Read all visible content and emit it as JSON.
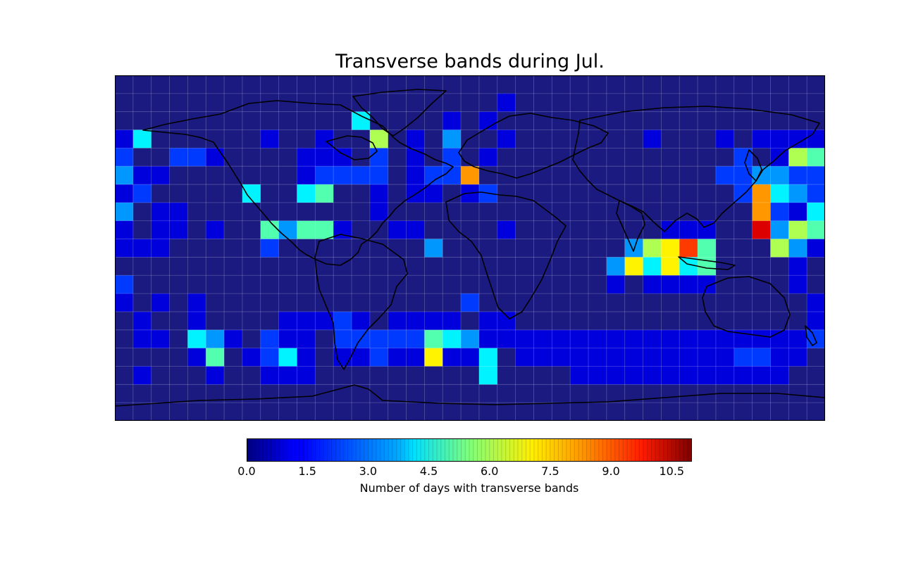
{
  "title": "Transverse bands during Jul.",
  "colorbar": {
    "label": "Number of days with transverse bands",
    "min": 0,
    "max": 11,
    "ticks": [
      "0.0",
      "1.5",
      "3.0",
      "4.5",
      "6.0",
      "7.5",
      "9.0",
      "10.5"
    ],
    "tick_values": [
      0,
      1.5,
      3,
      4.5,
      6,
      7.5,
      9,
      10.5
    ],
    "colormap": "jet"
  },
  "chart_data": {
    "type": "heatmap",
    "title": "Transverse bands during Jul.",
    "colorbar_label": "Number of days with transverse bands",
    "vmin": 0,
    "vmax": 11,
    "grid": "10x10 degree",
    "lon_range": [
      -180,
      180
    ],
    "lat_range": [
      -90,
      90
    ],
    "note_rows": "rows ordered from 90N down to 90S; columns from 180W eastward",
    "values": [
      [
        0,
        0,
        0,
        0,
        0,
        0,
        0,
        0,
        0,
        0,
        0,
        0,
        0,
        0,
        0,
        0,
        0,
        0,
        0,
        0,
        0,
        0,
        0,
        0,
        0,
        0,
        0,
        0,
        0,
        0,
        0,
        0,
        0,
        0,
        0,
        0,
        0,
        0,
        0
      ],
      [
        0,
        0,
        0,
        0,
        0,
        0,
        0,
        0,
        0,
        0,
        0,
        0,
        0,
        0,
        0,
        0,
        0,
        0,
        0,
        0,
        0,
        1,
        0,
        0,
        0,
        0,
        0,
        0,
        0,
        0,
        0,
        0,
        0,
        0,
        0,
        0,
        0,
        0,
        0
      ],
      [
        0,
        0,
        0,
        0,
        0,
        0,
        0,
        0,
        0,
        0,
        0,
        0,
        0,
        4,
        0,
        0,
        0,
        0,
        1,
        0,
        1,
        0,
        0,
        0,
        0,
        0,
        0,
        0,
        0,
        0,
        0,
        0,
        0,
        0,
        0,
        0,
        0,
        0,
        0
      ],
      [
        1,
        4,
        0,
        0,
        0,
        0,
        0,
        0,
        1,
        0,
        0,
        1,
        0,
        0,
        6,
        0,
        1,
        0,
        3,
        0,
        0,
        1,
        0,
        0,
        0,
        0,
        0,
        0,
        0,
        1,
        0,
        0,
        0,
        1,
        0,
        1,
        1,
        1,
        1
      ],
      [
        2,
        0,
        0,
        2,
        2,
        1,
        0,
        0,
        0,
        0,
        1,
        1,
        1,
        0,
        2,
        0,
        1,
        0,
        2,
        0,
        1,
        0,
        0,
        0,
        0,
        0,
        0,
        0,
        0,
        0,
        0,
        0,
        0,
        0,
        2,
        0,
        1,
        6,
        5
      ],
      [
        3,
        1,
        1,
        0,
        0,
        0,
        0,
        0,
        0,
        0,
        1,
        2,
        2,
        2,
        2,
        0,
        1,
        2,
        2,
        8,
        0,
        0,
        0,
        0,
        0,
        0,
        0,
        0,
        0,
        0,
        0,
        0,
        0,
        2,
        2,
        3,
        3,
        2,
        2
      ],
      [
        1,
        2,
        0,
        0,
        0,
        0,
        0,
        4,
        0,
        0,
        4,
        5,
        0,
        0,
        1,
        0,
        1,
        1,
        0,
        1,
        2,
        0,
        0,
        0,
        0,
        0,
        0,
        0,
        0,
        0,
        0,
        0,
        0,
        0,
        2,
        8,
        4,
        3,
        2
      ],
      [
        3,
        0,
        1,
        1,
        0,
        0,
        0,
        0,
        0,
        0,
        0,
        0,
        0,
        0,
        1,
        0,
        0,
        0,
        0,
        0,
        0,
        0,
        0,
        0,
        0,
        0,
        0,
        0,
        0,
        0,
        0,
        0,
        0,
        0,
        0,
        8,
        2,
        1,
        4
      ],
      [
        1,
        0,
        1,
        1,
        0,
        1,
        0,
        0,
        5,
        3,
        5,
        5,
        1,
        0,
        0,
        1,
        1,
        0,
        0,
        0,
        0,
        1,
        0,
        0,
        0,
        0,
        0,
        0,
        0,
        0,
        1,
        1,
        1,
        0,
        0,
        10,
        3,
        6,
        5
      ],
      [
        1,
        1,
        1,
        0,
        0,
        0,
        0,
        0,
        2,
        0,
        0,
        0,
        0,
        0,
        0,
        0,
        0,
        3,
        0,
        0,
        0,
        0,
        0,
        0,
        0,
        0,
        0,
        0,
        3,
        6,
        7,
        9,
        5,
        0,
        0,
        0,
        6,
        3,
        1
      ],
      [
        0,
        0,
        0,
        0,
        0,
        0,
        0,
        0,
        0,
        0,
        0,
        0,
        0,
        0,
        0,
        0,
        0,
        0,
        0,
        0,
        0,
        0,
        0,
        0,
        0,
        0,
        0,
        3,
        7,
        4,
        7,
        4,
        5,
        0,
        0,
        0,
        0,
        1,
        0
      ],
      [
        2,
        0,
        0,
        0,
        0,
        0,
        0,
        0,
        0,
        0,
        0,
        0,
        0,
        0,
        0,
        0,
        0,
        0,
        0,
        0,
        0,
        0,
        0,
        0,
        0,
        0,
        0,
        1,
        0,
        1,
        1,
        1,
        1,
        0,
        0,
        0,
        0,
        1,
        0
      ],
      [
        1,
        0,
        1,
        0,
        1,
        0,
        0,
        0,
        0,
        0,
        0,
        0,
        0,
        0,
        0,
        0,
        0,
        0,
        0,
        2,
        0,
        0,
        0,
        0,
        0,
        0,
        0,
        0,
        0,
        0,
        0,
        0,
        0,
        0,
        0,
        0,
        0,
        0,
        1
      ],
      [
        0,
        1,
        0,
        0,
        1,
        0,
        0,
        0,
        0,
        1,
        1,
        1,
        2,
        1,
        0,
        1,
        1,
        1,
        1,
        0,
        1,
        1,
        0,
        0,
        0,
        0,
        0,
        0,
        0,
        0,
        0,
        0,
        0,
        0,
        0,
        0,
        0,
        0,
        1
      ],
      [
        0,
        1,
        1,
        0,
        4,
        3,
        1,
        0,
        2,
        1,
        1,
        0,
        2,
        2,
        2,
        2,
        2,
        5,
        4,
        3,
        1,
        1,
        1,
        1,
        1,
        1,
        1,
        1,
        1,
        1,
        1,
        1,
        1,
        1,
        1,
        1,
        1,
        1,
        2
      ],
      [
        0,
        0,
        0,
        0,
        1,
        5,
        0,
        1,
        2,
        4,
        1,
        0,
        1,
        1,
        2,
        1,
        1,
        7,
        1,
        1,
        4,
        0,
        1,
        1,
        1,
        1,
        1,
        1,
        1,
        1,
        1,
        1,
        1,
        1,
        2,
        2,
        1,
        1,
        0
      ],
      [
        0,
        1,
        0,
        0,
        0,
        1,
        0,
        0,
        1,
        1,
        1,
        0,
        0,
        0,
        0,
        0,
        0,
        0,
        0,
        0,
        4,
        0,
        0,
        0,
        0,
        1,
        1,
        1,
        1,
        1,
        1,
        1,
        1,
        1,
        1,
        1,
        1,
        0,
        0
      ],
      [
        0,
        0,
        0,
        0,
        0,
        0,
        0,
        0,
        0,
        0,
        0,
        0,
        0,
        0,
        0,
        0,
        0,
        0,
        0,
        0,
        0,
        0,
        0,
        0,
        0,
        0,
        0,
        0,
        0,
        0,
        0,
        0,
        0,
        0,
        0,
        0,
        0,
        0,
        0
      ],
      [
        0,
        0,
        0,
        0,
        0,
        0,
        0,
        0,
        0,
        0,
        0,
        0,
        0,
        0,
        0,
        0,
        0,
        0,
        0,
        0,
        0,
        0,
        0,
        0,
        0,
        0,
        0,
        0,
        0,
        0,
        0,
        0,
        0,
        0,
        0,
        0,
        0,
        0,
        0
      ]
    ]
  }
}
